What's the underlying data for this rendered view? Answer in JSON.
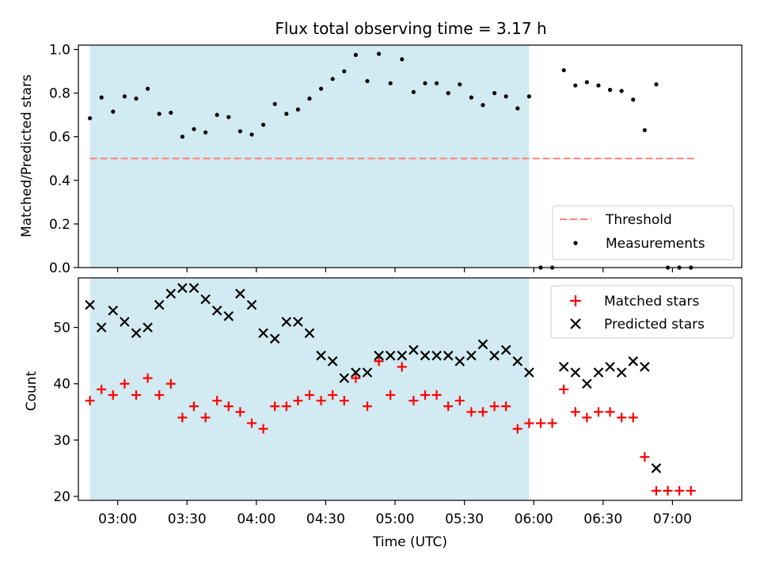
{
  "chart_data": [
    {
      "type": "scatter",
      "title": "Flux total observing time = 3.17 h",
      "xlabel": "",
      "ylabel": "Matched/Predicted stars",
      "xlim": [
        "02:43",
        "07:30"
      ],
      "ylim": [
        0,
        1.02
      ],
      "yticks": [
        "0.0",
        "0.2",
        "0.4",
        "0.6",
        "0.8",
        "1.0"
      ],
      "shaded_region": {
        "from": "02:48",
        "to": "05:58",
        "color": "#add8e6"
      },
      "legend_position": "lower-right",
      "threshold": {
        "name": "Threshold",
        "value": 0.5,
        "from": "02:48",
        "to": "07:10",
        "color": "#ff8080"
      },
      "series": [
        {
          "name": "Measurements",
          "color": "#000000",
          "x": [
            "02:48",
            "02:53",
            "02:58",
            "03:03",
            "03:08",
            "03:13",
            "03:18",
            "03:23",
            "03:28",
            "03:33",
            "03:38",
            "03:43",
            "03:48",
            "03:53",
            "03:58",
            "04:03",
            "04:08",
            "04:13",
            "04:18",
            "04:23",
            "04:28",
            "04:33",
            "04:38",
            "04:43",
            "04:48",
            "04:53",
            "04:58",
            "05:03",
            "05:08",
            "05:13",
            "05:18",
            "05:23",
            "05:28",
            "05:33",
            "05:38",
            "05:43",
            "05:48",
            "05:53",
            "05:58",
            "06:03",
            "06:08",
            "06:13",
            "06:18",
            "06:23",
            "06:28",
            "06:33",
            "06:38",
            "06:43",
            "06:48",
            "06:53",
            "06:58",
            "07:03",
            "07:08"
          ],
          "y": [
            0.685,
            0.78,
            0.715,
            0.785,
            0.775,
            0.82,
            0.705,
            0.71,
            0.6,
            0.635,
            0.62,
            0.7,
            0.69,
            0.625,
            0.61,
            0.655,
            0.75,
            0.705,
            0.725,
            0.775,
            0.82,
            0.865,
            0.9,
            0.975,
            0.855,
            0.98,
            0.845,
            0.955,
            0.805,
            0.845,
            0.845,
            0.8,
            0.84,
            0.78,
            0.745,
            0.8,
            0.785,
            0.73,
            0.785,
            0.0,
            0.0,
            0.905,
            0.835,
            0.85,
            0.835,
            0.815,
            0.81,
            0.77,
            0.63,
            0.84,
            0.0,
            0.0,
            0.0
          ]
        }
      ]
    },
    {
      "type": "scatter",
      "title": "",
      "xlabel": "Time (UTC)",
      "ylabel": "Count",
      "xlim": [
        "02:43",
        "07:30"
      ],
      "ylim": [
        19.3,
        58.8
      ],
      "yticks": [
        "20",
        "30",
        "40",
        "50"
      ],
      "xticks": [
        "03:00",
        "03:30",
        "04:00",
        "04:30",
        "05:00",
        "05:30",
        "06:00",
        "06:30",
        "07:00"
      ],
      "shaded_region": {
        "from": "02:48",
        "to": "05:58",
        "color": "#add8e6"
      },
      "legend_position": "upper-right",
      "series": [
        {
          "name": "Matched stars",
          "marker": "+",
          "color": "#ff0000",
          "x": [
            "02:48",
            "02:53",
            "02:58",
            "03:03",
            "03:08",
            "03:13",
            "03:18",
            "03:23",
            "03:28",
            "03:33",
            "03:38",
            "03:43",
            "03:48",
            "03:53",
            "03:58",
            "04:03",
            "04:08",
            "04:13",
            "04:18",
            "04:23",
            "04:28",
            "04:33",
            "04:38",
            "04:43",
            "04:48",
            "04:53",
            "04:58",
            "05:03",
            "05:08",
            "05:13",
            "05:18",
            "05:23",
            "05:28",
            "05:33",
            "05:38",
            "05:43",
            "05:48",
            "05:53",
            "05:58",
            "06:03",
            "06:08",
            "06:13",
            "06:18",
            "06:23",
            "06:28",
            "06:33",
            "06:38",
            "06:43",
            "06:48",
            "06:53",
            "06:58",
            "07:03",
            "07:08"
          ],
          "y": [
            37,
            39,
            38,
            40,
            38,
            41,
            38,
            40,
            34,
            36,
            34,
            37,
            36,
            35,
            33,
            32,
            36,
            36,
            37,
            38,
            37,
            38,
            37,
            41,
            36,
            44,
            38,
            43,
            37,
            38,
            38,
            36,
            37,
            35,
            35,
            36,
            36,
            32,
            33,
            33,
            33,
            39,
            35,
            34,
            35,
            35,
            34,
            34,
            27,
            21,
            21,
            21,
            21
          ]
        },
        {
          "name": "Predicted stars",
          "marker": "x",
          "color": "#000000",
          "x": [
            "02:48",
            "02:53",
            "02:58",
            "03:03",
            "03:08",
            "03:13",
            "03:18",
            "03:23",
            "03:28",
            "03:33",
            "03:38",
            "03:43",
            "03:48",
            "03:53",
            "03:58",
            "04:03",
            "04:08",
            "04:13",
            "04:18",
            "04:23",
            "04:28",
            "04:33",
            "04:38",
            "04:43",
            "04:48",
            "04:53",
            "04:58",
            "05:03",
            "05:08",
            "05:13",
            "05:18",
            "05:23",
            "05:28",
            "05:33",
            "05:38",
            "05:43",
            "05:48",
            "05:53",
            "05:58",
            "06:13",
            "06:18",
            "06:23",
            "06:28",
            "06:33",
            "06:38",
            "06:43",
            "06:48",
            "06:53"
          ],
          "y": [
            54,
            50,
            53,
            51,
            49,
            50,
            54,
            56,
            57,
            57,
            55,
            53,
            52,
            56,
            54,
            49,
            48,
            51,
            51,
            49,
            45,
            44,
            41,
            42,
            42,
            45,
            45,
            45,
            46,
            45,
            45,
            45,
            44,
            45,
            47,
            45,
            46,
            44,
            42,
            43,
            42,
            40,
            42,
            43,
            42,
            44,
            43,
            25
          ]
        }
      ]
    }
  ]
}
